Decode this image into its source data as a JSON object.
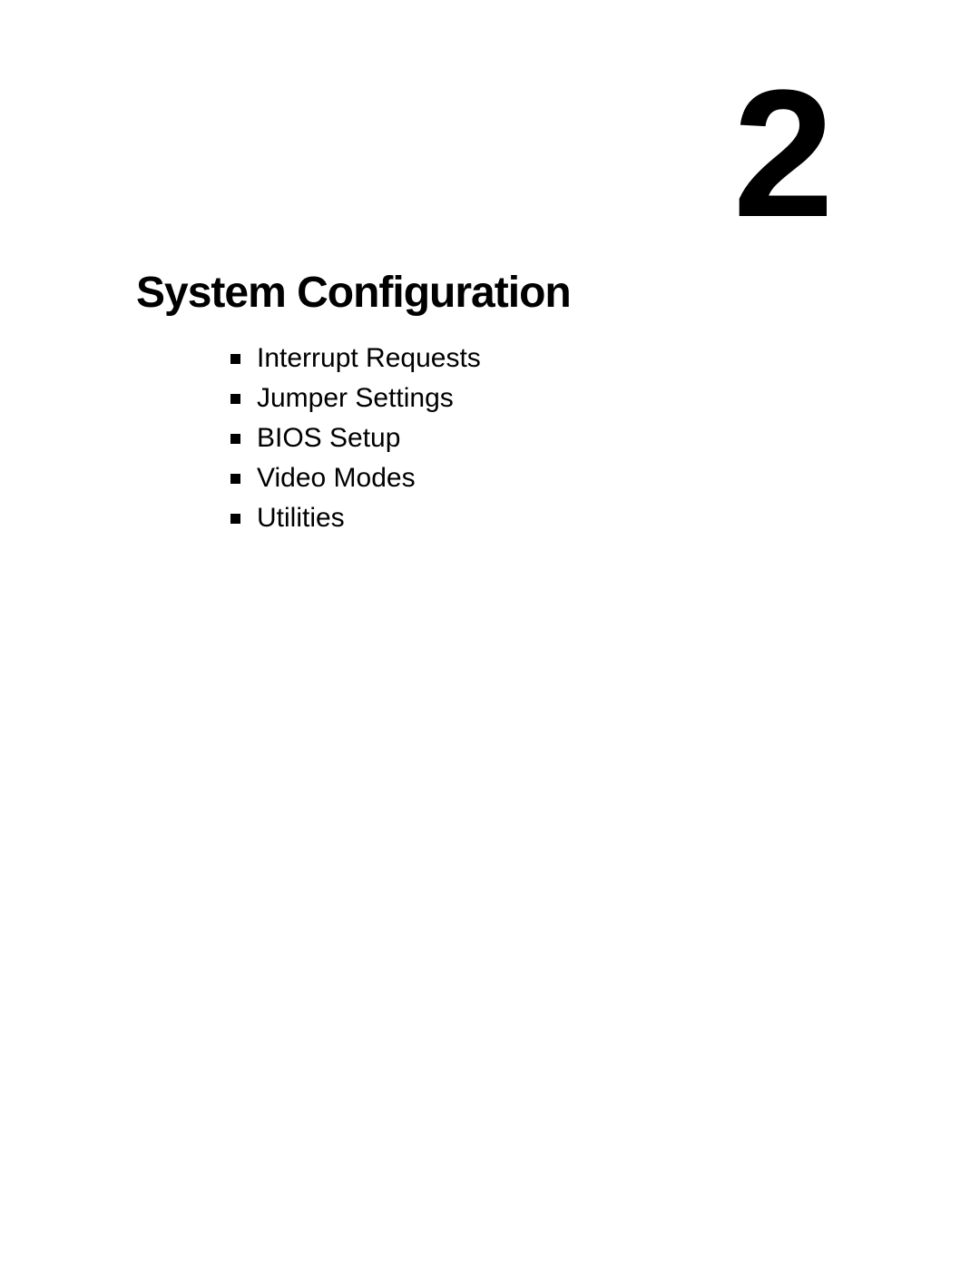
{
  "chapter": {
    "number": "2",
    "title": "System Configuration"
  },
  "toc": {
    "items": [
      {
        "label": "Interrupt Requests"
      },
      {
        "label": "Jumper Settings"
      },
      {
        "label": "BIOS Setup"
      },
      {
        "label": "Video Modes"
      },
      {
        "label": "Utilities"
      }
    ]
  },
  "style": {
    "background_color": "#ffffff",
    "text_color": "#000000",
    "chapter_number_fontsize": 200,
    "chapter_number_weight": 700,
    "chapter_title_fontsize": 48,
    "chapter_title_weight": 700,
    "toc_fontsize": 30,
    "toc_weight": 400,
    "bullet_size": 11,
    "bullet_color": "#000000",
    "font_family": "Arial, Helvetica, sans-serif"
  }
}
